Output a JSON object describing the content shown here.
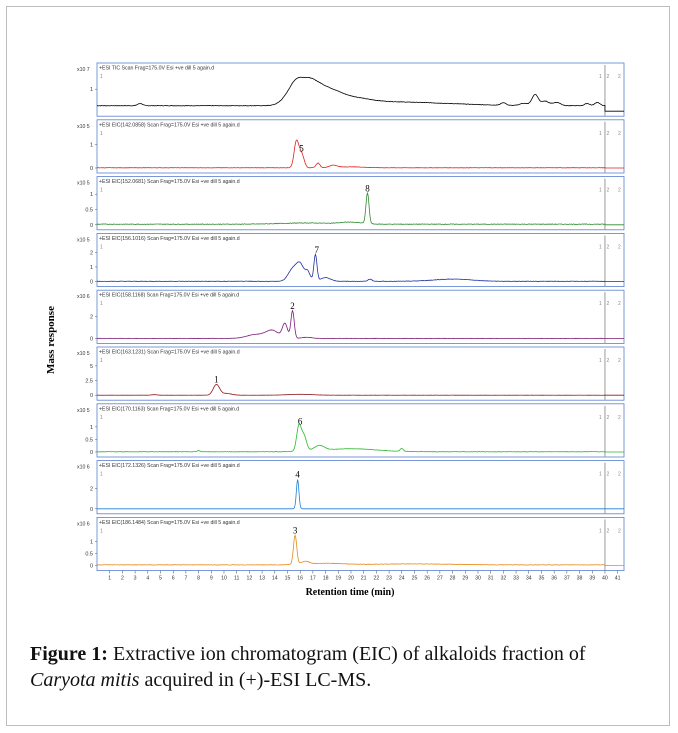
{
  "figure": {
    "ylabel": "Mass response",
    "xlabel": "Retention time (min)",
    "caption": {
      "label": "Figure 1:",
      "text_before": " Extractive ion chromatogram (EIC) of alkaloids fraction of ",
      "species": "Caryota mitis",
      "text_after": " acquired in (+)-ESI LC-MS."
    }
  },
  "chart_data": {
    "type": "line",
    "x_unit": "min",
    "xlim": [
      0,
      41.5
    ],
    "x_ticks": [
      1,
      2,
      3,
      4,
      5,
      6,
      7,
      8,
      9,
      10,
      11,
      12,
      13,
      14,
      15,
      16,
      17,
      18,
      19,
      20,
      21,
      22,
      23,
      24,
      25,
      26,
      27,
      28,
      29,
      30,
      31,
      32,
      33,
      34,
      35,
      36,
      37,
      38,
      39,
      40,
      41
    ],
    "cursor_x": 40,
    "cursor_labels": [
      "1",
      "2"
    ],
    "panels": [
      {
        "header": "+ESI TIC Scan Frag=175.0V Esi +ve dill 5 again.d",
        "scale": "x10 7",
        "color": "#000000",
        "yticks": [
          "1"
        ],
        "ymax": 1.6,
        "baseline": 0.25,
        "noise": 0.02,
        "peaks": [
          [
            3.4,
            0.1,
            0.2
          ],
          [
            15.2,
            0.45,
            0.6
          ],
          [
            15.8,
            0.75,
            0.5
          ],
          [
            16.6,
            0.65,
            0.5
          ],
          [
            17.3,
            0.55,
            0.6
          ],
          [
            18.3,
            0.4,
            0.8
          ],
          [
            19.5,
            0.3,
            1.5
          ],
          [
            22,
            0.15,
            3
          ],
          [
            27,
            0.08,
            3
          ],
          [
            32,
            0.12,
            0.2
          ],
          [
            33.6,
            0.1,
            0.3
          ],
          [
            34.5,
            0.5,
            0.25
          ],
          [
            35.3,
            0.2,
            0.3
          ],
          [
            36.2,
            0.15,
            0.3
          ],
          [
            38.6,
            0.1,
            0.2
          ],
          [
            39.4,
            0.15,
            0.2
          ]
        ]
      },
      {
        "header": "+ESI EIC(142.0858) Scan Frag=175.0V Esi +ve dill 5 again.d",
        "scale": "x10 5",
        "color": "#e0201c",
        "yticks": [
          "1",
          "0"
        ],
        "ymax": 1.5,
        "label": "5",
        "label_x": 16.1,
        "baseline": 0.01,
        "noise": 0.015,
        "peaks": [
          [
            15.7,
            1.1,
            0.18
          ],
          [
            16.1,
            0.6,
            0.2
          ],
          [
            17.4,
            0.2,
            0.15
          ],
          [
            18.6,
            0.1,
            0.3
          ],
          [
            20,
            0.04,
            1
          ]
        ]
      },
      {
        "header": "+ESI EIC(152.0681) Scan Frag=175.0V Esi +ve dill 5 again.d",
        "scale": "x10 5",
        "color": "#2e8b2e",
        "yticks": [
          "1",
          "0.5",
          "0"
        ],
        "ymax": 1.15,
        "label": "8",
        "label_x": 21.3,
        "baseline": 0.02,
        "noise": 0.02,
        "peaks": [
          [
            21.3,
            1.0,
            0.12
          ],
          [
            20,
            0.06,
            0.8
          ],
          [
            16.5,
            0.04,
            2
          ]
        ]
      },
      {
        "header": "+ESI EIC(156.1016) Scan Frag=175.0V Esi +ve dill 5 again.d",
        "scale": "x10 5",
        "color": "#1f2fa0",
        "yticks": [
          "2",
          "1",
          "0"
        ],
        "ymax": 2.4,
        "label": "7",
        "label_x": 17.3,
        "baseline": 0.02,
        "noise": 0.03,
        "peaks": [
          [
            15.4,
            0.8,
            0.35
          ],
          [
            16,
            1.1,
            0.3
          ],
          [
            16.6,
            0.6,
            0.2
          ],
          [
            17.2,
            1.8,
            0.12
          ],
          [
            18,
            0.25,
            0.4
          ],
          [
            21.5,
            0.15,
            0.15
          ],
          [
            28,
            0.15,
            1.5
          ]
        ]
      },
      {
        "header": "+ESI EIC(158.1168) Scan Frag=175.0V Esi +ve dill 5 again.d",
        "scale": "x10 6",
        "color": "#7a1a7a",
        "yticks": [
          "2",
          "0"
        ],
        "ymax": 3.2,
        "label": "2",
        "label_x": 15.4,
        "baseline": 0.0,
        "noise": 0.02,
        "peaks": [
          [
            12.5,
            0.35,
            0.7
          ],
          [
            13.8,
            0.7,
            0.5
          ],
          [
            14.8,
            1.3,
            0.2
          ],
          [
            15.4,
            2.5,
            0.13
          ],
          [
            16.5,
            0.1,
            0.4
          ]
        ]
      },
      {
        "header": "+ESI EIC(163.1231) Scan Frag=175.0V Esi +ve dill 5 again.d",
        "scale": "x10 5",
        "color": "#8b1a1a",
        "yticks": [
          "5",
          "2.5",
          "0"
        ],
        "ymax": 6,
        "label": "1",
        "label_x": 9.4,
        "baseline": 0.0,
        "noise": 0.03,
        "peaks": [
          [
            9.4,
            1.8,
            0.25
          ],
          [
            10.2,
            0.3,
            0.4
          ],
          [
            4.5,
            0.1,
            0.2
          ],
          [
            16,
            0.15,
            1
          ]
        ]
      },
      {
        "header": "+ESI EIC(170.1163) Scan Frag=175.0V Esi +ve dill 5 again.d",
        "scale": "x10 5",
        "color": "#2bb82b",
        "yticks": [
          "1",
          "0.5",
          "0"
        ],
        "ymax": 1.4,
        "label": "6",
        "label_x": 16.0,
        "baseline": 0.01,
        "noise": 0.015,
        "peaks": [
          [
            15.9,
            1.0,
            0.18
          ],
          [
            16.3,
            0.6,
            0.2
          ],
          [
            17.5,
            0.2,
            0.4
          ],
          [
            20,
            0.12,
            2
          ],
          [
            24,
            0.12,
            0.12
          ],
          [
            8,
            0.05,
            0.1
          ]
        ]
      },
      {
        "header": "+ESI EIC(172.1326) Scan Frag=175.0V Esi +ve dill 5 again.d",
        "scale": "x10 6",
        "color": "#1f7fd6",
        "yticks": [
          "2",
          "0"
        ],
        "ymax": 3.5,
        "label": "4",
        "label_x": 15.8,
        "baseline": 0.0,
        "noise": 0.0,
        "peaks": [
          [
            15.8,
            2.9,
            0.1
          ]
        ]
      },
      {
        "header": "+ESI EIC(186.1484) Scan Frag=175.0V Esi +ve dill 5 again.d",
        "scale": "x10 6",
        "color": "#e88a1a",
        "yticks": [
          "1",
          "0.5",
          "0"
        ],
        "ymax": 1.45,
        "label": "3",
        "label_x": 15.6,
        "baseline": 0.03,
        "noise": 0.02,
        "peaks": [
          [
            15.6,
            1.2,
            0.13
          ],
          [
            16.4,
            0.12,
            0.3
          ],
          [
            18,
            0.06,
            1.5
          ],
          [
            25,
            0.04,
            3
          ]
        ]
      }
    ]
  }
}
